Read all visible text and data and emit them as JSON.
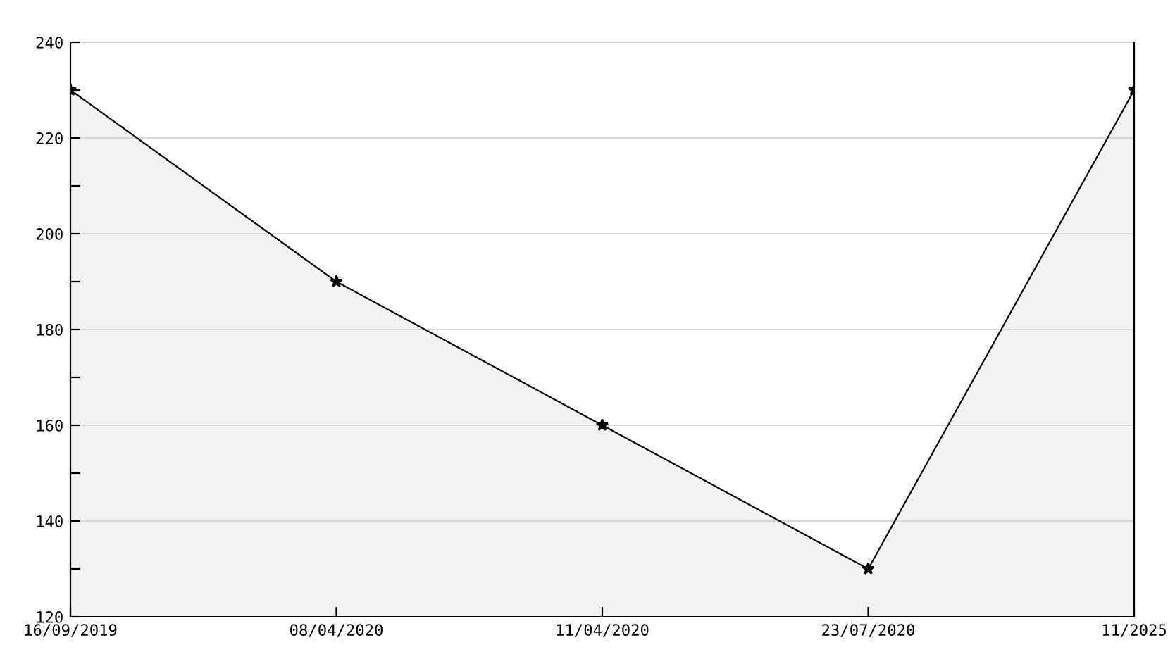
{
  "chart_data": {
    "type": "area",
    "categories": [
      "16/09/2019",
      "08/04/2020",
      "11/04/2020",
      "23/07/2020",
      "11/2025"
    ],
    "series": [
      {
        "color": "#000000",
        "values": [
          230,
          190,
          160,
          130,
          230
        ]
      }
    ],
    "ylim": [
      120,
      240
    ],
    "yticks": [
      120,
      {
        "value": 130,
        "label": null
      },
      140,
      {
        "value": 150,
        "label": null
      },
      160,
      {
        "value": 170,
        "label": null
      },
      180,
      {
        "value": 190,
        "label": null
      },
      200,
      {
        "value": 210,
        "label": null
      },
      220,
      {
        "value": 230,
        "label": null
      },
      240
    ],
    "grid": "y",
    "marker": "star",
    "line_style": "solid"
  }
}
